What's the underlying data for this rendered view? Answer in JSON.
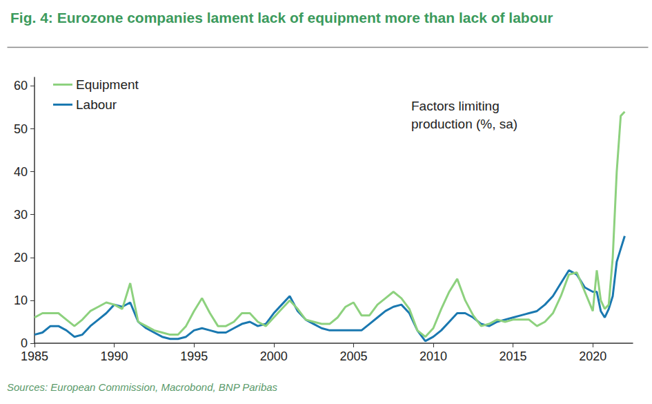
{
  "chart_data": {
    "type": "line",
    "title": "Fig. 4: Eurozone companies lament lack of equipment more than lack of labour",
    "annotation": "Factors limiting production (%, sa)",
    "source": "Sources: European Commission, Macrobond, BNP Paribas",
    "x": [
      1985,
      1985.5,
      1986,
      1986.5,
      1987,
      1987.5,
      1988,
      1988.5,
      1989,
      1989.5,
      1990,
      1990.5,
      1991,
      1991.5,
      1992,
      1992.5,
      1993,
      1993.5,
      1994,
      1994.5,
      1995,
      1995.5,
      1996,
      1996.5,
      1997,
      1997.5,
      1998,
      1998.5,
      1999,
      1999.5,
      2000,
      2000.5,
      2001,
      2001.5,
      2002,
      2002.5,
      2003,
      2003.5,
      2004,
      2004.5,
      2005,
      2005.5,
      2006,
      2006.5,
      2007,
      2007.5,
      2008,
      2008.5,
      2009,
      2009.5,
      2010,
      2010.5,
      2011,
      2011.5,
      2012,
      2012.5,
      2013,
      2013.5,
      2014,
      2014.5,
      2015,
      2015.5,
      2016,
      2016.5,
      2017,
      2017.5,
      2018,
      2018.5,
      2019,
      2019.5,
      2020,
      2020.25,
      2020.5,
      2020.75,
      2021,
      2021.25,
      2021.5,
      2021.75,
      2022
    ],
    "series": [
      {
        "name": "Equipment",
        "color": "#8dd17e",
        "values": [
          6,
          7,
          7,
          7,
          5.5,
          4,
          5.5,
          7.5,
          8.5,
          9.5,
          9,
          8,
          14,
          5,
          4,
          3,
          2.5,
          2,
          2,
          4,
          7.5,
          10.5,
          7,
          4,
          4,
          5,
          7,
          7,
          5,
          4,
          6,
          8,
          10,
          8,
          5.5,
          5,
          4.5,
          4.5,
          6,
          8.5,
          9.5,
          6.5,
          6.5,
          9,
          10.5,
          12,
          10.5,
          8,
          3,
          1.5,
          3.5,
          8,
          12,
          15,
          10,
          6.5,
          4,
          4.5,
          5.5,
          5,
          5.5,
          5.5,
          5.5,
          4,
          5,
          7,
          11,
          16,
          16.5,
          12,
          7.5,
          17,
          10,
          8,
          9,
          20,
          40,
          53,
          54
        ]
      },
      {
        "name": "Labour",
        "color": "#1a78b0",
        "values": [
          2,
          2.5,
          4,
          4,
          3,
          1.5,
          2,
          4,
          5.5,
          7,
          9,
          8.5,
          9.5,
          5,
          3.5,
          2.5,
          1.5,
          1,
          1,
          1.5,
          3,
          3.5,
          3,
          2.5,
          2.5,
          3.5,
          4.5,
          5,
          4,
          4.5,
          7,
          9,
          11,
          7.5,
          5.5,
          4.5,
          3.5,
          3,
          3,
          3,
          3,
          3,
          4.5,
          6,
          7.5,
          8.5,
          9,
          7,
          3,
          0.5,
          1.5,
          3,
          5,
          7,
          7,
          6,
          4.5,
          4,
          5,
          5.5,
          6,
          6.5,
          7,
          7.5,
          9,
          11,
          14,
          17,
          16,
          13,
          12,
          12,
          7.5,
          6,
          8,
          11,
          19,
          22,
          25
        ]
      }
    ],
    "xlim": [
      1985,
      2022.5
    ],
    "xticks": [
      1985,
      1990,
      1995,
      2000,
      2005,
      2010,
      2015,
      2020
    ],
    "ylim": [
      0,
      62
    ],
    "yticks": [
      0,
      10,
      20,
      30,
      40,
      50,
      60
    ],
    "grid": false,
    "legend": "top-left"
  }
}
